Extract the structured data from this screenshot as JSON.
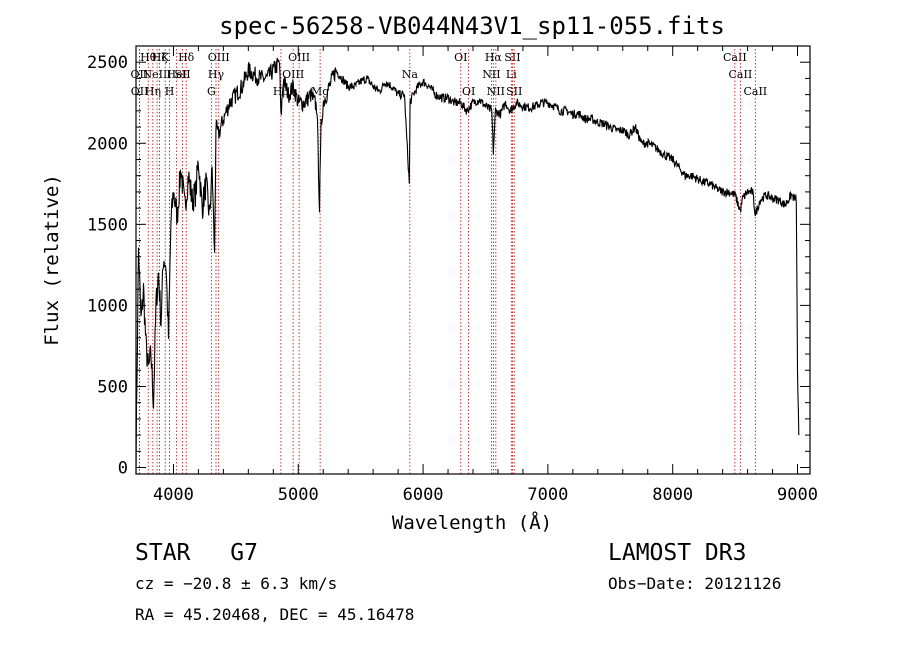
{
  "chart_data": {
    "type": "line",
    "title": "spec-56258-VB044N43V1_sp11-055.fits",
    "xlabel": "Wavelength (Å)",
    "ylabel": "Flux (relative)",
    "xlim": [
      3700,
      9100
    ],
    "ylim": [
      -40,
      2600
    ],
    "x_ticks": [
      4000,
      5000,
      6000,
      7000,
      8000,
      9000
    ],
    "y_ticks": [
      0,
      500,
      1000,
      1500,
      2000,
      2500
    ],
    "series": [
      {
        "name": "spectrum",
        "x": [
          3700,
          3720,
          3740,
          3760,
          3780,
          3800,
          3820,
          3840,
          3860,
          3880,
          3900,
          3920,
          3940,
          3960,
          3980,
          4000,
          4030,
          4060,
          4090,
          4120,
          4150,
          4180,
          4200,
          4230,
          4260,
          4290,
          4310,
          4330,
          4340,
          4360,
          4400,
          4450,
          4500,
          4550,
          4600,
          4650,
          4700,
          4750,
          4800,
          4850,
          4861,
          4880,
          4920,
          4960,
          5000,
          5050,
          5100,
          5150,
          5170,
          5183,
          5200,
          5250,
          5300,
          5350,
          5400,
          5450,
          5500,
          5550,
          5600,
          5650,
          5700,
          5750,
          5800,
          5850,
          5890,
          5896,
          5920,
          5960,
          6000,
          6050,
          6100,
          6150,
          6200,
          6250,
          6300,
          6350,
          6400,
          6450,
          6500,
          6550,
          6563,
          6580,
          6620,
          6660,
          6700,
          6750,
          6800,
          6850,
          6900,
          6950,
          7000,
          7050,
          7100,
          7150,
          7200,
          7250,
          7300,
          7350,
          7400,
          7450,
          7500,
          7550,
          7600,
          7650,
          7700,
          7750,
          7800,
          7850,
          7900,
          7950,
          8000,
          8050,
          8100,
          8150,
          8200,
          8250,
          8300,
          8350,
          8400,
          8450,
          8500,
          8542,
          8560,
          8600,
          8640,
          8662,
          8700,
          8750,
          8800,
          8850,
          8900,
          8950,
          8990,
          9000,
          9010
        ],
        "y": [
          50,
          1350,
          900,
          1100,
          750,
          600,
          700,
          400,
          1000,
          1200,
          900,
          1300,
          1250,
          800,
          1500,
          1700,
          1550,
          1850,
          1600,
          1800,
          1650,
          1700,
          1900,
          1600,
          1750,
          1550,
          1850,
          1300,
          2100,
          2050,
          2150,
          2250,
          2300,
          2350,
          2450,
          2420,
          2400,
          2400,
          2450,
          2500,
          2150,
          2400,
          2300,
          2350,
          2250,
          2250,
          2300,
          2220,
          1600,
          2100,
          2250,
          2350,
          2450,
          2400,
          2350,
          2350,
          2380,
          2400,
          2350,
          2320,
          2380,
          2350,
          2300,
          2300,
          1750,
          2250,
          2300,
          2350,
          2380,
          2350,
          2300,
          2280,
          2280,
          2250,
          2250,
          2200,
          2250,
          2270,
          2230,
          2200,
          1950,
          2200,
          2180,
          2250,
          2200,
          2250,
          2230,
          2220,
          2230,
          2250,
          2250,
          2230,
          2200,
          2200,
          2180,
          2180,
          2150,
          2150,
          2130,
          2120,
          2100,
          2080,
          2080,
          2050,
          2100,
          2000,
          2000,
          1980,
          1950,
          1920,
          1900,
          1850,
          1800,
          1800,
          1780,
          1760,
          1750,
          1720,
          1700,
          1700,
          1680,
          1580,
          1660,
          1700,
          1700,
          1560,
          1650,
          1680,
          1660,
          1650,
          1620,
          1680,
          1650,
          600,
          200
        ]
      }
    ],
    "lines": [
      {
        "wavelength": 3727,
        "label": "OII",
        "row": 2
      },
      {
        "wavelength": 3729,
        "label": "OII",
        "row": 3
      },
      {
        "wavelength": 3798,
        "label": "Hθ",
        "row": 1
      },
      {
        "wavelength": 3835,
        "label": "Hη",
        "row": 3
      },
      {
        "wavelength": 3869,
        "label": "NeIII",
        "row": 2
      },
      {
        "wavelength": 3889,
        "label": "Hζ",
        "row": 1
      },
      {
        "wavelength": 3934,
        "label": "K",
        "row": 1
      },
      {
        "wavelength": 3969,
        "label": "H",
        "row": 3
      },
      {
        "wavelength": 4026,
        "label": "HeI",
        "row": 2
      },
      {
        "wavelength": 4072,
        "label": "SII",
        "row": 2
      },
      {
        "wavelength": 4102,
        "label": "Hδ",
        "row": 1
      },
      {
        "wavelength": 4304,
        "label": "G",
        "row": 3
      },
      {
        "wavelength": 4341,
        "label": "Hγ",
        "row": 2
      },
      {
        "wavelength": 4363,
        "label": "OIII",
        "row": 1
      },
      {
        "wavelength": 4861,
        "label": "Hβ",
        "row": 3
      },
      {
        "wavelength": 4959,
        "label": "OIII",
        "row": 2
      },
      {
        "wavelength": 5007,
        "label": "OIII",
        "row": 1
      },
      {
        "wavelength": 5175,
        "label": "Mg",
        "row": 3
      },
      {
        "wavelength": 5894,
        "label": "Na",
        "row": 2
      },
      {
        "wavelength": 6302,
        "label": "OI",
        "row": 1
      },
      {
        "wavelength": 6365,
        "label": "OI",
        "row": 3
      },
      {
        "wavelength": 6548,
        "label": "NII",
        "row": 2
      },
      {
        "wavelength": 6563,
        "label": "Hα",
        "row": 1
      },
      {
        "wavelength": 6583,
        "label": "NII",
        "row": 3
      },
      {
        "wavelength": 6707,
        "label": "Li",
        "row": 2
      },
      {
        "wavelength": 6716,
        "label": "SII",
        "row": 1
      },
      {
        "wavelength": 6730,
        "label": "SII",
        "row": 3
      },
      {
        "wavelength": 8498,
        "label": "CaII",
        "row": 1
      },
      {
        "wavelength": 8542,
        "label": "CaII",
        "row": 2
      },
      {
        "wavelength": 8662,
        "label": "CaII",
        "row": 3
      }
    ]
  },
  "info": {
    "class": "STAR",
    "subclass": "G7",
    "survey": "LAMOST DR3",
    "cz": "cz = −20.8 ± 6.3 km/s",
    "obs_date": "Obs−Date: 20121126",
    "coords": "RA =  45.20468, DEC =  45.16478"
  }
}
